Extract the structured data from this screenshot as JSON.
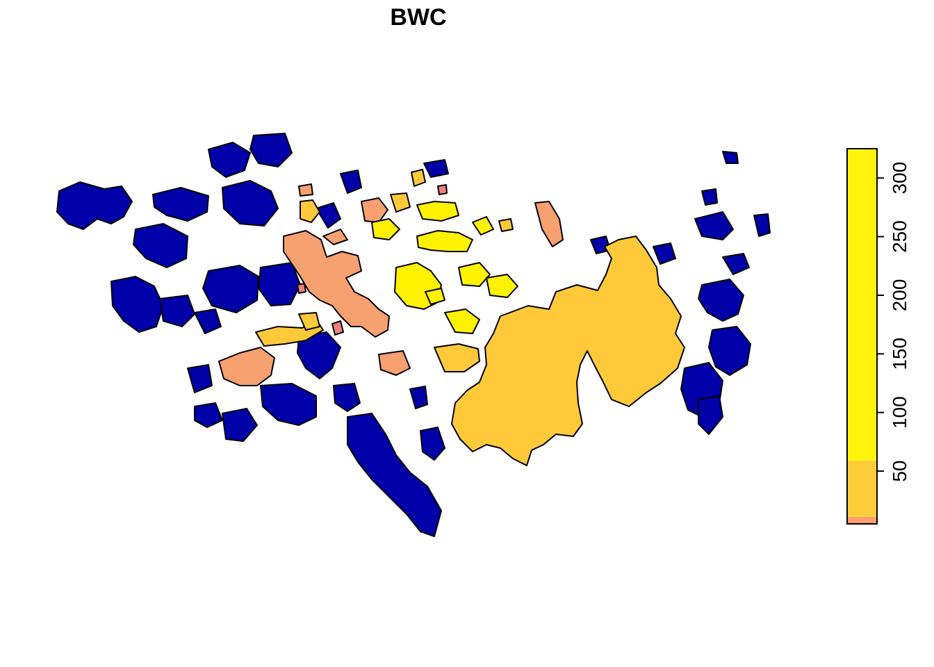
{
  "title": "BWC",
  "legend": {
    "ticks": [
      "50",
      "100",
      "150",
      "200",
      "250",
      "300"
    ],
    "tick_values": [
      50,
      100,
      150,
      200,
      250,
      300
    ],
    "range": [
      5,
      325
    ],
    "bands": [
      {
        "from": 5,
        "to": 11,
        "color": "#FF9E6E"
      },
      {
        "from": 11,
        "to": 59,
        "color": "#FFCC3A"
      },
      {
        "from": 59,
        "to": 325,
        "color": "#FFF30E"
      }
    ]
  },
  "colors": {
    "blue": "#0000A8",
    "salmon": "#F7A070",
    "pink": "#F08080",
    "orange": "#FFC93A",
    "yellow": "#FFF200",
    "outline": "#000000"
  }
}
